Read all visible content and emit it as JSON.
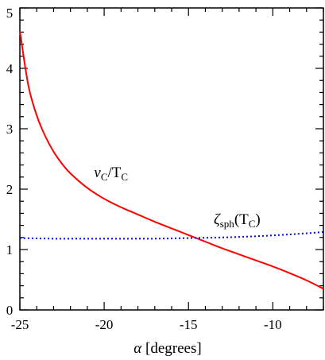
{
  "chart_data": {
    "type": "line",
    "title": "",
    "xlabel_symbol": "α",
    "xlabel_unit": "[degrees]",
    "ylabel": "",
    "xlim": [
      -25,
      -7
    ],
    "ylim": [
      0,
      5
    ],
    "x_ticks": [
      -25,
      -20,
      -15,
      -10
    ],
    "x_tick_labels": [
      "-25",
      "-20",
      "-15",
      "-10"
    ],
    "y_ticks": [
      0,
      1,
      2,
      3,
      4,
      5
    ],
    "y_tick_labels": [
      "0",
      "1",
      "2",
      "3",
      "4",
      "5"
    ],
    "grid": false,
    "series": [
      {
        "name": "vC/TC",
        "color": "#ff0000",
        "style": "solid",
        "x": [
          -25,
          -24.5,
          -24,
          -23.5,
          -23,
          -22.5,
          -22,
          -21,
          -20,
          -19,
          -18,
          -17,
          -16,
          -15,
          -14,
          -13,
          -12,
          -11,
          -10,
          -9,
          -8,
          -7
        ],
        "y": [
          4.62,
          3.72,
          3.22,
          2.88,
          2.62,
          2.42,
          2.26,
          2.02,
          1.84,
          1.7,
          1.58,
          1.46,
          1.35,
          1.24,
          1.13,
          1.02,
          0.92,
          0.82,
          0.72,
          0.61,
          0.49,
          0.35
        ]
      },
      {
        "name": "ζsph(TC)",
        "color": "#0000ff",
        "style": "dotted",
        "x": [
          -25,
          -23,
          -21,
          -19,
          -17,
          -15,
          -13,
          -11,
          -9,
          -7
        ],
        "y": [
          1.19,
          1.18,
          1.18,
          1.18,
          1.18,
          1.19,
          1.2,
          1.22,
          1.25,
          1.29
        ]
      }
    ],
    "annotations": [
      {
        "label_main": "v",
        "label_sub": "C",
        "label_mid": "/T",
        "label_sub2": "C",
        "x": -20.6,
        "y": 2.2
      },
      {
        "label_main": "ζ",
        "label_sub": "sph",
        "label_mid": "(T",
        "label_sub2": "C",
        "label_end": ")",
        "x": -13.5,
        "y": 1.42
      }
    ]
  }
}
